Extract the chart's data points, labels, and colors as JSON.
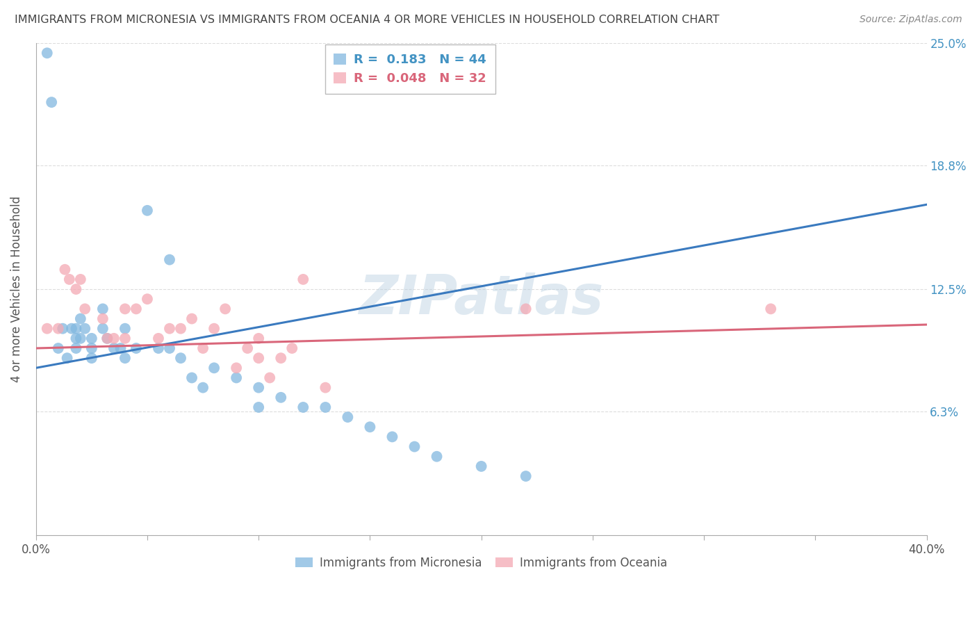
{
  "title": "IMMIGRANTS FROM MICRONESIA VS IMMIGRANTS FROM OCEANIA 4 OR MORE VEHICLES IN HOUSEHOLD CORRELATION CHART",
  "source": "Source: ZipAtlas.com",
  "ylabel": "4 or more Vehicles in Household",
  "ylim": [
    0,
    0.25
  ],
  "xlim": [
    0,
    0.4
  ],
  "yticks": [
    0.0,
    0.063,
    0.125,
    0.188,
    0.25
  ],
  "ytick_labels_right": [
    "",
    "6.3%",
    "12.5%",
    "18.8%",
    "25.0%"
  ],
  "series1_label": "Immigrants from Micronesia",
  "series1_color": "#82b8e0",
  "series1_R": "0.183",
  "series1_N": "44",
  "series2_label": "Immigrants from Oceania",
  "series2_color": "#f4a9b4",
  "series2_R": "0.048",
  "series2_N": "32",
  "watermark": "ZIPatlas",
  "series1_x": [
    0.005,
    0.007,
    0.01,
    0.012,
    0.014,
    0.016,
    0.018,
    0.018,
    0.018,
    0.02,
    0.02,
    0.022,
    0.025,
    0.025,
    0.025,
    0.03,
    0.03,
    0.032,
    0.035,
    0.038,
    0.04,
    0.04,
    0.045,
    0.05,
    0.055,
    0.06,
    0.06,
    0.065,
    0.07,
    0.075,
    0.08,
    0.09,
    0.1,
    0.1,
    0.11,
    0.12,
    0.13,
    0.14,
    0.15,
    0.16,
    0.17,
    0.18,
    0.2,
    0.22
  ],
  "series1_y": [
    0.245,
    0.22,
    0.095,
    0.105,
    0.09,
    0.105,
    0.105,
    0.1,
    0.095,
    0.11,
    0.1,
    0.105,
    0.1,
    0.095,
    0.09,
    0.115,
    0.105,
    0.1,
    0.095,
    0.095,
    0.105,
    0.09,
    0.095,
    0.165,
    0.095,
    0.14,
    0.095,
    0.09,
    0.08,
    0.075,
    0.085,
    0.08,
    0.075,
    0.065,
    0.07,
    0.065,
    0.065,
    0.06,
    0.055,
    0.05,
    0.045,
    0.04,
    0.035,
    0.03
  ],
  "series2_x": [
    0.005,
    0.01,
    0.013,
    0.015,
    0.018,
    0.02,
    0.022,
    0.03,
    0.032,
    0.035,
    0.04,
    0.04,
    0.045,
    0.05,
    0.055,
    0.06,
    0.065,
    0.07,
    0.075,
    0.08,
    0.085,
    0.09,
    0.095,
    0.1,
    0.1,
    0.105,
    0.11,
    0.115,
    0.12,
    0.13,
    0.22,
    0.33
  ],
  "series2_y": [
    0.105,
    0.105,
    0.135,
    0.13,
    0.125,
    0.13,
    0.115,
    0.11,
    0.1,
    0.1,
    0.1,
    0.115,
    0.115,
    0.12,
    0.1,
    0.105,
    0.105,
    0.11,
    0.095,
    0.105,
    0.115,
    0.085,
    0.095,
    0.1,
    0.09,
    0.08,
    0.09,
    0.095,
    0.13,
    0.075,
    0.115,
    0.115
  ],
  "line1_x0": 0.0,
  "line1_y0": 0.085,
  "line1_x1": 0.4,
  "line1_y1": 0.168,
  "line2_x0": 0.0,
  "line2_y0": 0.095,
  "line2_x1": 0.4,
  "line2_y1": 0.107,
  "legend_R_color": "#4393c3",
  "legend_R2_color": "#d9667a",
  "background_color": "#ffffff",
  "grid_color": "#dddddd",
  "title_color": "#444444",
  "axis_label_color": "#555555",
  "right_tick_color": "#4393c3"
}
